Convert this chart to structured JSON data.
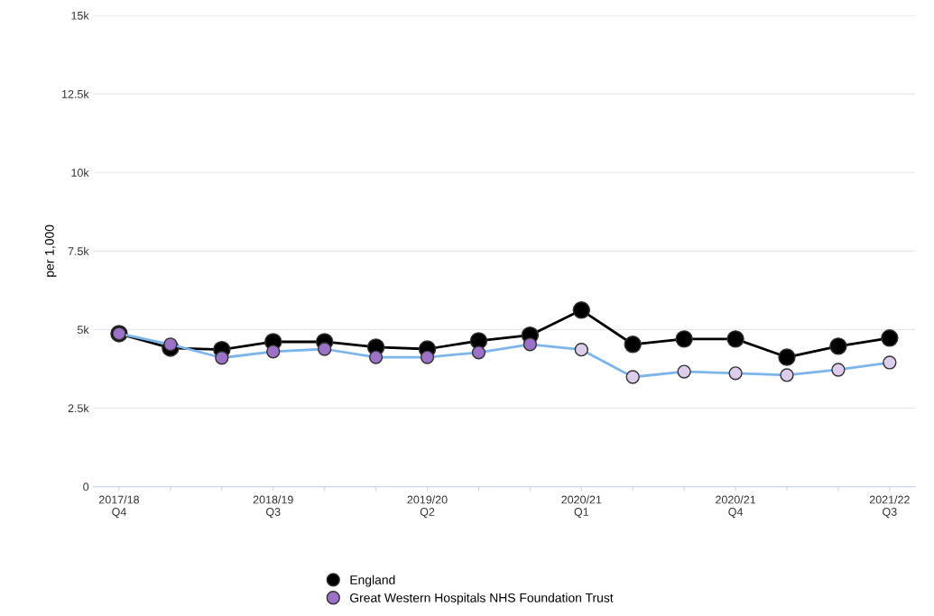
{
  "chart_data": {
    "type": "line",
    "ylabel": "per 1,000",
    "categories": [
      "2017/18\nQ4",
      null,
      null,
      "2018/19\nQ3",
      null,
      null,
      "2019/20\nQ2",
      null,
      null,
      "2020/21\nQ1",
      null,
      null,
      "2020/21\nQ4",
      null,
      null,
      "2021/22\nQ3"
    ],
    "series": [
      {
        "name": "England",
        "color": "#000000",
        "colors": [
          "#000000",
          "#000000",
          "#000000",
          "#000000",
          "#000000",
          "#000000",
          "#000000",
          "#000000",
          "#000000",
          "#000000",
          "#000000",
          "#000000",
          "#000000",
          "#000000",
          "#000000",
          "#000000"
        ],
        "values": [
          4870,
          4410,
          4360,
          4610,
          4610,
          4440,
          4380,
          4640,
          4820,
          5620,
          4530,
          4700,
          4700,
          4120,
          4470,
          4730
        ]
      },
      {
        "name": "Great Western Hospitals NHS Foundation Trust",
        "color": "#7cb5ec",
        "colors": [
          "#9b72c8",
          "#9b72c8",
          "#9b72c8",
          "#9b72c8",
          "#9b72c8",
          "#9b72c8",
          "#9b72c8",
          "#9b72c8",
          "#9b72c8",
          "#dccdea",
          "#dccdea",
          "#dccdea",
          "#dccdea",
          "#dccdea",
          "#dccdea",
          "#dccdea"
        ],
        "values": [
          4870,
          4530,
          4100,
          4300,
          4380,
          4120,
          4120,
          4270,
          4530,
          4360,
          3490,
          3660,
          3610,
          3550,
          3720,
          3950
        ]
      }
    ],
    "ylim": [
      0,
      15000
    ],
    "yticks": [
      0,
      {
        "value": 2500,
        "label": "2.5k"
      },
      {
        "value": 5000,
        "label": "5k"
      },
      {
        "value": 7500,
        "label": "7.5k"
      },
      {
        "value": 10000,
        "label": "10k"
      },
      {
        "value": 12500,
        "label": "12.5k"
      },
      {
        "value": 15000,
        "label": "15k"
      }
    ],
    "grid": "y",
    "legend": "bottom",
    "marker": "circle",
    "line_style": "solid"
  }
}
